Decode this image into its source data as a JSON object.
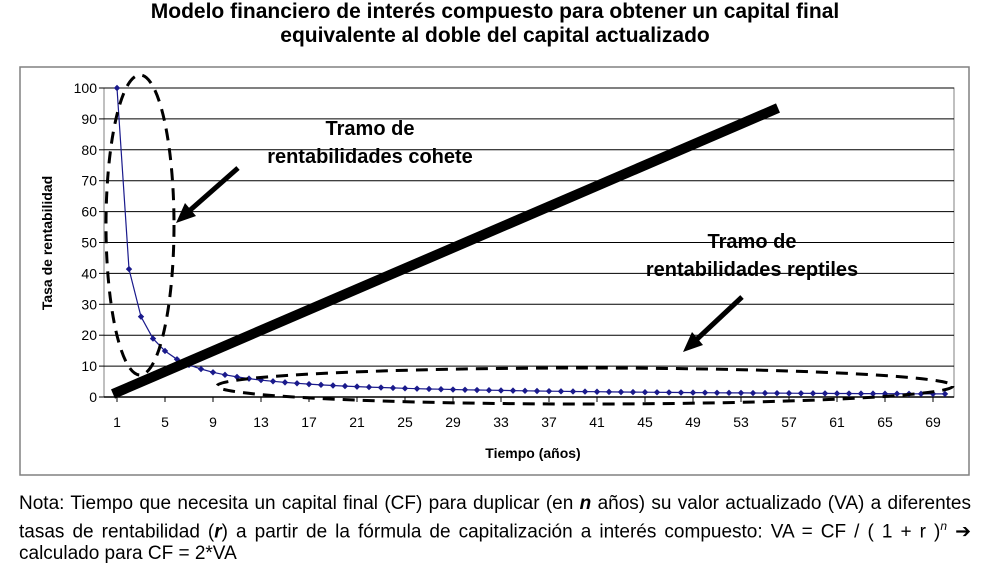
{
  "title": {
    "line1": "Modelo financiero de interés compuesto para obtener un capital final",
    "line2": "equivalente al doble del capital actualizado"
  },
  "colors": {
    "series": "#1a1a8c",
    "marker": "#1a1a8c",
    "frame": "#808080",
    "annotation": "#000000",
    "background": "#ffffff"
  },
  "annotations": {
    "cohete": {
      "line1": "Tramo de",
      "line2": "rentabilidades cohete"
    },
    "reptiles": {
      "line1": "Tramo de",
      "line2": "rentabilidades reptiles"
    }
  },
  "note": {
    "part1": "Nota: Tiempo que necesita un capital final (CF) para duplicar (en ",
    "n": "n",
    "part2": " años) su valor actualizado (VA) a diferentes tasas de rentabilidad (",
    "r": "r",
    "part3": ") a partir de la fórmula de capitalización a interés compuesto: VA = CF / ( 1 + r )",
    "exp": "n",
    "part4": " ➔ calculado para CF = 2*VA"
  },
  "chart_data": {
    "type": "line",
    "xlabel": "Tiempo (años)",
    "ylabel": "Tasa de rentabilidad",
    "xlim": [
      1,
      71
    ],
    "ylim": [
      0,
      100
    ],
    "grid": "horizontal",
    "xticks": [
      "1",
      "5",
      "9",
      "13",
      "17",
      "21",
      "25",
      "29",
      "33",
      "37",
      "41",
      "45",
      "49",
      "53",
      "57",
      "61",
      "65",
      "69"
    ],
    "yticks": [
      "0",
      "10",
      "20",
      "30",
      "40",
      "50",
      "60",
      "70",
      "80",
      "90",
      "100"
    ],
    "series": [
      {
        "x": [
          1,
          2,
          3,
          4,
          5,
          6,
          7,
          8,
          9,
          10,
          11,
          12,
          13,
          14,
          15,
          16,
          17,
          18,
          19,
          20,
          21,
          22,
          23,
          24,
          25,
          26,
          27,
          28,
          29,
          30,
          31,
          32,
          33,
          34,
          35,
          36,
          37,
          38,
          39,
          40,
          41,
          42,
          43,
          44,
          45,
          46,
          47,
          48,
          49,
          50,
          51,
          52,
          53,
          54,
          55,
          56,
          57,
          58,
          59,
          60,
          61,
          62,
          63,
          64,
          65,
          66,
          67,
          68,
          69,
          70
        ],
        "values": [
          100,
          41.4,
          26,
          18.9,
          14.9,
          12.2,
          10.4,
          9.05,
          8.0,
          7.18,
          6.5,
          5.95,
          5.48,
          5.08,
          4.73,
          4.43,
          4.16,
          3.93,
          3.72,
          3.53,
          3.36,
          3.2,
          3.06,
          2.93,
          2.81,
          2.7,
          2.6,
          2.51,
          2.42,
          2.34,
          2.26,
          2.19,
          2.12,
          2.06,
          2.0,
          1.94,
          1.89,
          1.84,
          1.79,
          1.75,
          1.7,
          1.66,
          1.62,
          1.59,
          1.55,
          1.52,
          1.49,
          1.45,
          1.42,
          1.4,
          1.37,
          1.34,
          1.32,
          1.29,
          1.27,
          1.25,
          1.22,
          1.2,
          1.18,
          1.16,
          1.14,
          1.12,
          1.11,
          1.09,
          1.07,
          1.06,
          1.04,
          1.03,
          1.01,
          1.0
        ]
      }
    ]
  }
}
